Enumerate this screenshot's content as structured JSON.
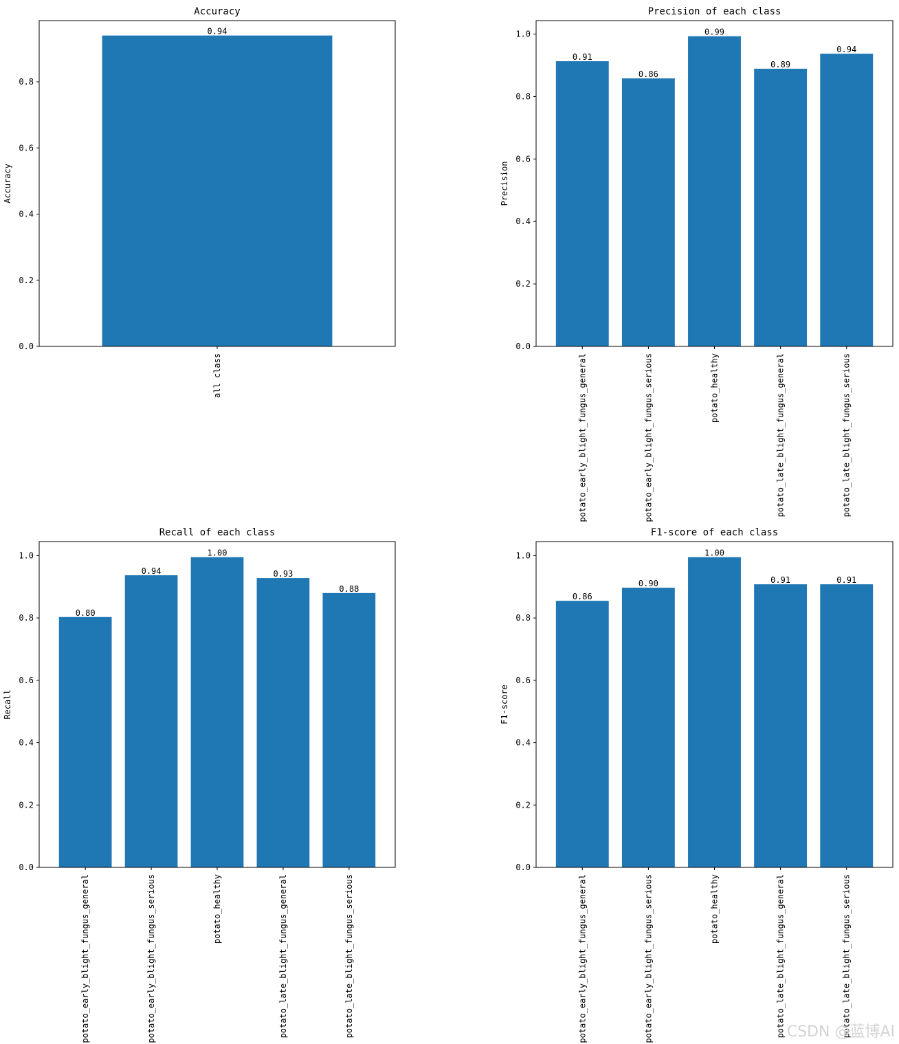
{
  "chart_data": [
    {
      "type": "bar",
      "title": "Accuracy",
      "ylabel": "Accuracy",
      "xlabel": "",
      "categories": [
        "all class"
      ],
      "values": [
        0.94
      ],
      "value_labels": [
        "0.94"
      ],
      "ylim": [
        0,
        0.985
      ],
      "yticks": [
        0.0,
        0.2,
        0.4,
        0.6,
        0.8
      ],
      "ytick_labels": [
        "0.0",
        "0.2",
        "0.4",
        "0.6",
        "0.8"
      ],
      "bar_color": "#1f77b4",
      "grid": false
    },
    {
      "type": "bar",
      "title": "Precision of each class",
      "ylabel": "Precision",
      "xlabel": "",
      "categories": [
        "potato_early_blight_fungus_general",
        "potato_early_blight_fungus_serious",
        "potato_healthy",
        "potato_late_blight_fungus_general",
        "potato_late_blight_fungus_serious"
      ],
      "values": [
        0.913,
        0.858,
        0.993,
        0.889,
        0.937
      ],
      "value_labels": [
        "0.91",
        "0.86",
        "0.99",
        "0.89",
        "0.94"
      ],
      "ylim": [
        0,
        1.043
      ],
      "yticks": [
        0.0,
        0.2,
        0.4,
        0.6,
        0.8,
        1.0
      ],
      "ytick_labels": [
        "0.0",
        "0.2",
        "0.4",
        "0.6",
        "0.8",
        "1.0"
      ],
      "bar_color": "#1f77b4",
      "grid": false
    },
    {
      "type": "bar",
      "title": "Recall of each class",
      "ylabel": "Recall",
      "xlabel": "",
      "categories": [
        "potato_early_blight_fungus_general",
        "potato_early_blight_fungus_serious",
        "potato_healthy",
        "potato_late_blight_fungus_general",
        "potato_late_blight_fungus_serious"
      ],
      "values": [
        0.803,
        0.937,
        0.995,
        0.928,
        0.88
      ],
      "value_labels": [
        "0.80",
        "0.94",
        "1.00",
        "0.93",
        "0.88"
      ],
      "ylim": [
        0,
        1.045
      ],
      "yticks": [
        0.0,
        0.2,
        0.4,
        0.6,
        0.8,
        1.0
      ],
      "ytick_labels": [
        "0.0",
        "0.2",
        "0.4",
        "0.6",
        "0.8",
        "1.0"
      ],
      "bar_color": "#1f77b4",
      "grid": false
    },
    {
      "type": "bar",
      "title": "F1-score of each class",
      "ylabel": "F1-score",
      "xlabel": "",
      "categories": [
        "potato_early_blight_fungus_general",
        "potato_early_blight_fungus_serious",
        "potato_healthy",
        "potato_late_blight_fungus_general",
        "potato_late_blight_fungus_serious"
      ],
      "values": [
        0.855,
        0.897,
        0.995,
        0.908,
        0.908
      ],
      "value_labels": [
        "0.86",
        "0.90",
        "1.00",
        "0.91",
        "0.91"
      ],
      "ylim": [
        0,
        1.045
      ],
      "yticks": [
        0.0,
        0.2,
        0.4,
        0.6,
        0.8,
        1.0
      ],
      "ytick_labels": [
        "0.0",
        "0.2",
        "0.4",
        "0.6",
        "0.8",
        "1.0"
      ],
      "bar_color": "#1f77b4",
      "grid": false
    }
  ],
  "watermark": "CSDN @蓝博AI"
}
